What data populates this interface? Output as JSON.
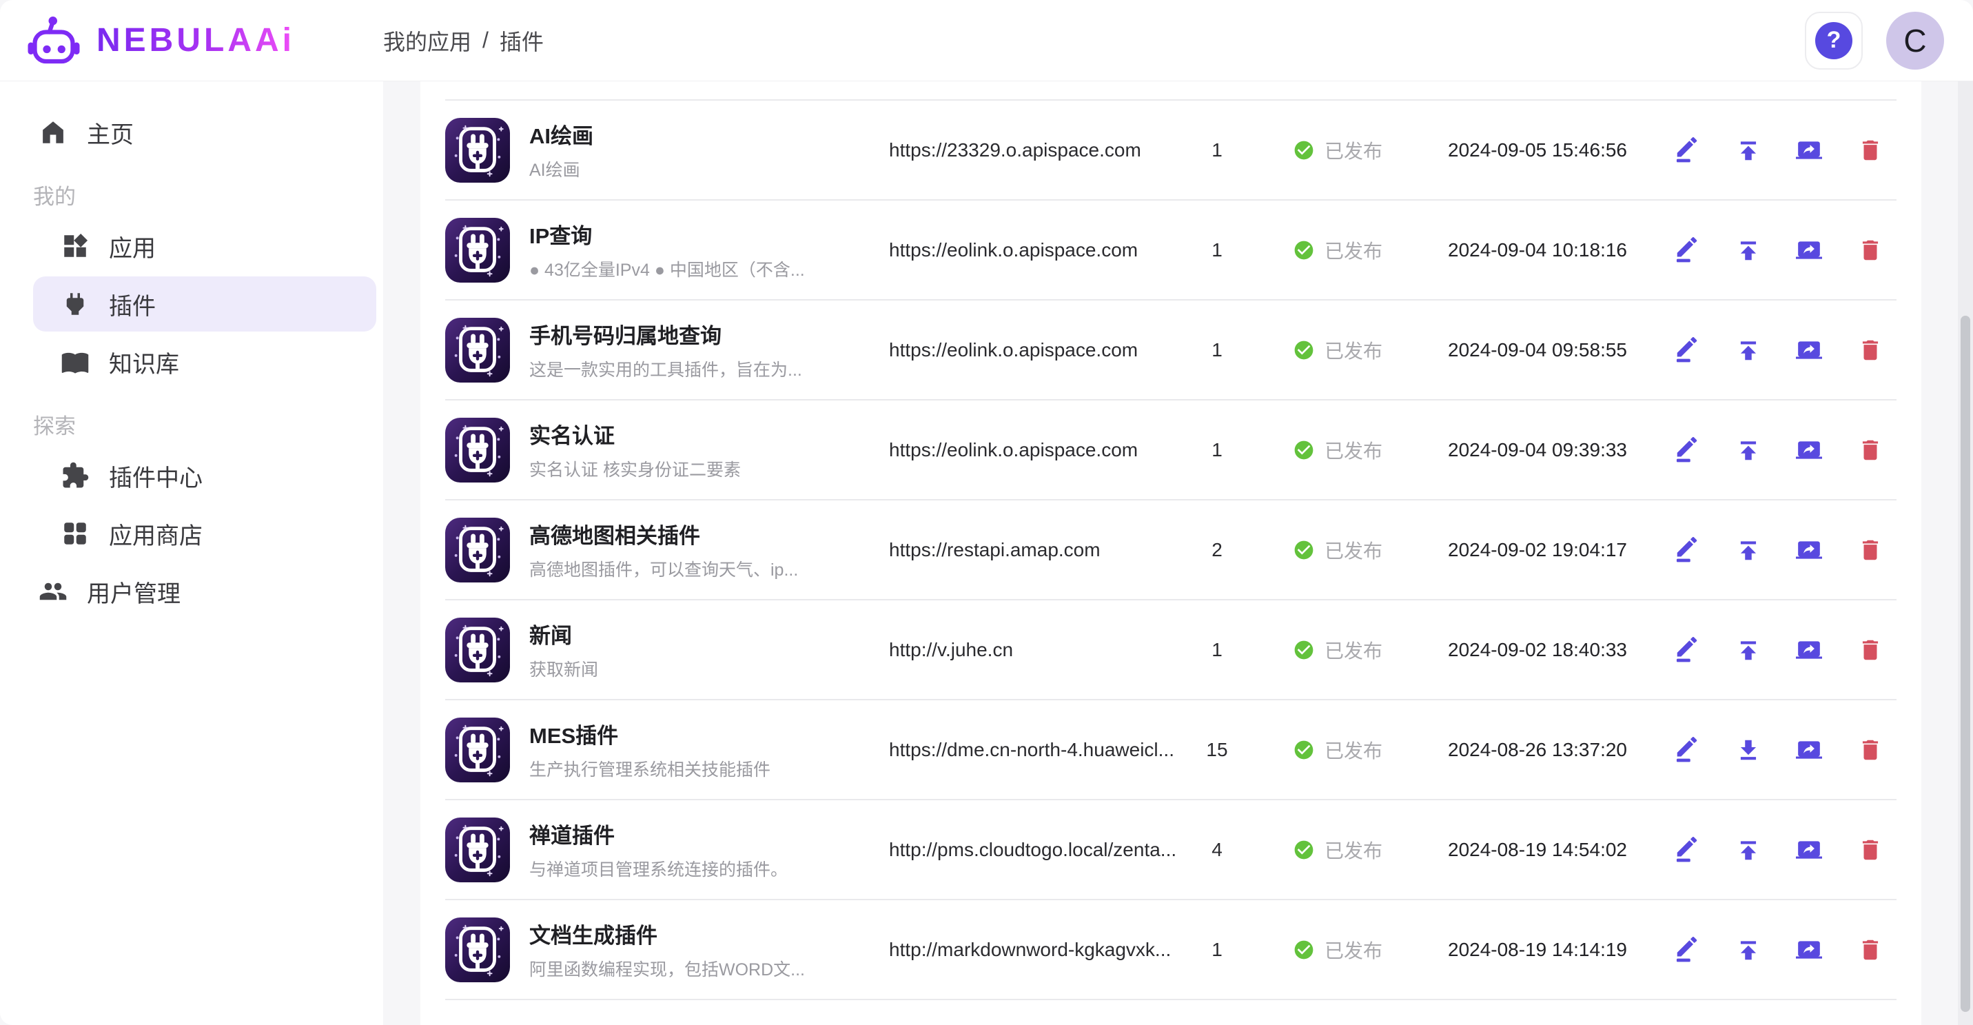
{
  "brand": {
    "name": "NEBULAAi"
  },
  "breadcrumb": {
    "parent": "我的应用",
    "separator": "/",
    "current": "插件"
  },
  "header": {
    "help_glyph": "?",
    "avatar_initial": "C"
  },
  "sidebar": {
    "items": [
      {
        "type": "item",
        "key": "home",
        "icon": "home-icon",
        "label": "主页",
        "level": 0,
        "active": false
      },
      {
        "type": "section",
        "label": "我的"
      },
      {
        "type": "item",
        "key": "apps",
        "icon": "widgets-icon",
        "label": "应用",
        "level": 1,
        "active": false
      },
      {
        "type": "item",
        "key": "plugins",
        "icon": "plug-icon",
        "label": "插件",
        "level": 1,
        "active": true
      },
      {
        "type": "item",
        "key": "knowledge-base",
        "icon": "book-icon",
        "label": "知识库",
        "level": 1,
        "active": false
      },
      {
        "type": "section",
        "label": "探索"
      },
      {
        "type": "item",
        "key": "plugin-center",
        "icon": "puzzle-icon",
        "label": "插件中心",
        "level": 1,
        "active": false
      },
      {
        "type": "item",
        "key": "app-store",
        "icon": "grid-icon",
        "label": "应用商店",
        "level": 1,
        "active": false
      },
      {
        "type": "item",
        "key": "user-management",
        "icon": "users-icon",
        "label": "用户管理",
        "level": 0,
        "active": false
      }
    ]
  },
  "table": {
    "rows": [
      {
        "name": "AI绘画",
        "desc": "AI绘画",
        "url": "https://23329.o.apispace.com",
        "count": "1",
        "status": "已发布",
        "date": "2024-09-05 15:46:56",
        "update_action": "upload"
      },
      {
        "name": "IP查询",
        "desc": "● 43亿全量IPv4 ● 中国地区（不含...",
        "url": "https://eolink.o.apispace.com",
        "count": "1",
        "status": "已发布",
        "date": "2024-09-04 10:18:16",
        "update_action": "upload"
      },
      {
        "name": "手机号码归属地查询",
        "desc": "这是一款实用的工具插件，旨在为...",
        "url": "https://eolink.o.apispace.com",
        "count": "1",
        "status": "已发布",
        "date": "2024-09-04 09:58:55",
        "update_action": "upload"
      },
      {
        "name": "实名认证",
        "desc": "实名认证 核实身份证二要素",
        "url": "https://eolink.o.apispace.com",
        "count": "1",
        "status": "已发布",
        "date": "2024-09-04 09:39:33",
        "update_action": "upload"
      },
      {
        "name": "高德地图相关插件",
        "desc": "高德地图插件，可以查询天气、ip...",
        "url": "https://restapi.amap.com",
        "count": "2",
        "status": "已发布",
        "date": "2024-09-02 19:04:17",
        "update_action": "upload"
      },
      {
        "name": "新闻",
        "desc": "获取新闻",
        "url": "http://v.juhe.cn",
        "count": "1",
        "status": "已发布",
        "date": "2024-09-02 18:40:33",
        "update_action": "upload"
      },
      {
        "name": "MES插件",
        "desc": "生产执行管理系统相关技能插件",
        "url": "https://dme.cn-north-4.huaweicl...",
        "count": "15",
        "status": "已发布",
        "date": "2024-08-26 13:37:20",
        "update_action": "download"
      },
      {
        "name": "禅道插件",
        "desc": "与禅道项目管理系统连接的插件。",
        "url": "http://pms.cloudtogo.local/zenta...",
        "count": "4",
        "status": "已发布",
        "date": "2024-08-19 14:54:02",
        "update_action": "upload"
      },
      {
        "name": "文档生成插件",
        "desc": "阿里函数编程实现，包括WORD文...",
        "url": "http://markdownword-kgkagvxk...",
        "count": "1",
        "status": "已发布",
        "date": "2024-08-19 14:14:19",
        "update_action": "upload"
      }
    ]
  },
  "colors": {
    "accent": "#5849df",
    "danger": "#d5505f",
    "success": "#63c23c",
    "active_item_bg": "#eeebfb",
    "brand_gradient_start": "#7a2af0",
    "brand_gradient_end": "#ef4ef6"
  }
}
